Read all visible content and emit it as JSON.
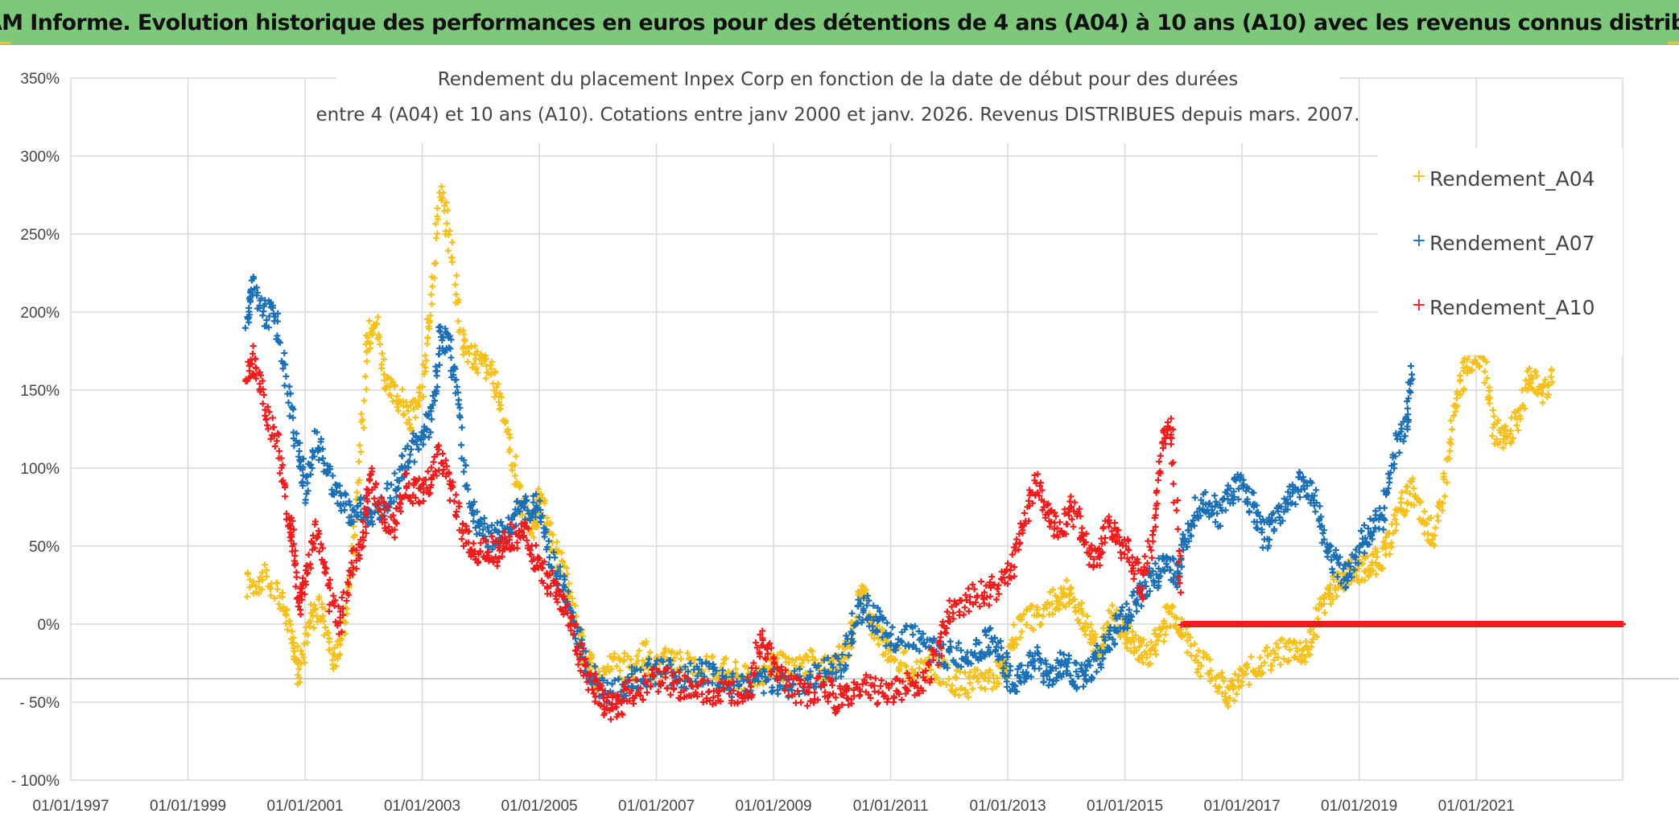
{
  "banner": {
    "title": "ADAM Informe. Evolution historique des performances en euros pour des détentions de 4 ans (A04) à 10 ans (A10) avec les revenus connus distribués"
  },
  "chart_data": {
    "type": "scatter",
    "title_line1": "Rendement du placement Inpex Corp en fonction de la date de début pour des durées",
    "title_line2": "entre 4 (A04) et 10 ans (A10). Cotations entre janv 2000 et janv. 2026. Revenus DISTRIBUES depuis mars. 2007.",
    "xlim": [
      1997.0,
      2023.5
    ],
    "ylim": [
      -100,
      350
    ],
    "x_ticks": [
      1997,
      1999,
      2001,
      2003,
      2005,
      2007,
      2009,
      2011,
      2013,
      2015,
      2017,
      2019,
      2021
    ],
    "x_tick_labels": [
      "01/01/1997",
      "01/01/1999",
      "01/01/2001",
      "01/01/2003",
      "01/01/2005",
      "01/01/2007",
      "01/01/2009",
      "01/01/2011",
      "01/01/2013",
      "01/01/2015",
      "01/01/2017",
      "01/01/2019",
      "01/01/2021"
    ],
    "y_ticks": [
      350,
      300,
      250,
      200,
      150,
      100,
      50,
      0,
      -50,
      -100
    ],
    "y_tick_labels": [
      "350%",
      "300%",
      "250%",
      "200%",
      "150%",
      "100%",
      "50%",
      "0%",
      "- 50%",
      "- 100%"
    ],
    "grid": true,
    "legend_position": "top-right",
    "marker": "+",
    "series": [
      {
        "name": "Rendement_A04",
        "color": "#f5c01a",
        "points": [
          [
            2000.0,
            25
          ],
          [
            2000.3,
            30
          ],
          [
            2000.6,
            15
          ],
          [
            2000.8,
            -10
          ],
          [
            2000.9,
            -30
          ],
          [
            2001.1,
            5
          ],
          [
            2001.3,
            10
          ],
          [
            2001.5,
            -25
          ],
          [
            2001.7,
            5
          ],
          [
            2001.9,
            80
          ],
          [
            2002.05,
            175
          ],
          [
            2002.2,
            200
          ],
          [
            2002.4,
            150
          ],
          [
            2002.6,
            145
          ],
          [
            2002.8,
            130
          ],
          [
            2003.0,
            150
          ],
          [
            2003.15,
            200
          ],
          [
            2003.3,
            280
          ],
          [
            2003.5,
            240
          ],
          [
            2003.7,
            180
          ],
          [
            2003.9,
            170
          ],
          [
            2004.1,
            165
          ],
          [
            2004.3,
            150
          ],
          [
            2004.5,
            115
          ],
          [
            2004.7,
            75
          ],
          [
            2004.9,
            60
          ],
          [
            2005.0,
            80
          ],
          [
            2005.2,
            55
          ],
          [
            2005.4,
            35
          ],
          [
            2005.6,
            5
          ],
          [
            2005.8,
            -20
          ],
          [
            2006.0,
            -35
          ],
          [
            2006.3,
            -25
          ],
          [
            2006.6,
            -30
          ],
          [
            2006.8,
            -20
          ],
          [
            2007.0,
            -30
          ],
          [
            2007.3,
            -20
          ],
          [
            2007.6,
            -30
          ],
          [
            2007.9,
            -25
          ],
          [
            2008.2,
            -30
          ],
          [
            2008.5,
            -35
          ],
          [
            2008.8,
            -30
          ],
          [
            2009.0,
            -25
          ],
          [
            2009.3,
            -30
          ],
          [
            2009.6,
            -25
          ],
          [
            2009.9,
            -30
          ],
          [
            2010.1,
            -25
          ],
          [
            2010.3,
            -10
          ],
          [
            2010.5,
            25
          ],
          [
            2010.7,
            0
          ],
          [
            2010.9,
            -15
          ],
          [
            2011.1,
            -20
          ],
          [
            2011.4,
            -30
          ],
          [
            2011.7,
            -25
          ],
          [
            2012.0,
            -35
          ],
          [
            2012.3,
            -40
          ],
          [
            2012.6,
            -35
          ],
          [
            2012.9,
            -30
          ],
          [
            2013.0,
            -25
          ],
          [
            2013.2,
            0
          ],
          [
            2013.5,
            5
          ],
          [
            2013.8,
            15
          ],
          [
            2014.0,
            20
          ],
          [
            2014.2,
            10
          ],
          [
            2014.4,
            -5
          ],
          [
            2014.6,
            -15
          ],
          [
            2014.8,
            5
          ],
          [
            2015.0,
            -5
          ],
          [
            2015.2,
            -15
          ],
          [
            2015.4,
            -20
          ],
          [
            2015.6,
            -5
          ],
          [
            2015.8,
            10
          ],
          [
            2016.0,
            -5
          ],
          [
            2016.3,
            -25
          ],
          [
            2016.6,
            -35
          ],
          [
            2016.8,
            -45
          ],
          [
            2017.0,
            -35
          ],
          [
            2017.3,
            -25
          ],
          [
            2017.6,
            -20
          ],
          [
            2017.9,
            -15
          ],
          [
            2018.1,
            -20
          ],
          [
            2018.3,
            5
          ],
          [
            2018.5,
            20
          ],
          [
            2018.7,
            30
          ],
          [
            2018.9,
            35
          ],
          [
            2019.1,
            35
          ],
          [
            2019.3,
            40
          ],
          [
            2019.5,
            50
          ],
          [
            2019.7,
            75
          ],
          [
            2019.9,
            85
          ],
          [
            2020.1,
            65
          ],
          [
            2020.3,
            55
          ],
          [
            2020.5,
            100
          ],
          [
            2020.7,
            150
          ],
          [
            2020.9,
            170
          ],
          [
            2021.1,
            175
          ],
          [
            2021.3,
            125
          ],
          [
            2021.5,
            120
          ],
          [
            2021.7,
            130
          ],
          [
            2021.9,
            160
          ],
          [
            2022.1,
            150
          ],
          [
            2022.3,
            155
          ]
        ]
      },
      {
        "name": "Rendement_A07",
        "color": "#1b6fb5",
        "points": [
          [
            2000.0,
            190
          ],
          [
            2000.1,
            220
          ],
          [
            2000.3,
            200
          ],
          [
            2000.5,
            195
          ],
          [
            2000.7,
            150
          ],
          [
            2000.9,
            110
          ],
          [
            2001.0,
            85
          ],
          [
            2001.2,
            120
          ],
          [
            2001.4,
            95
          ],
          [
            2001.6,
            80
          ],
          [
            2001.8,
            70
          ],
          [
            2002.0,
            75
          ],
          [
            2002.2,
            70
          ],
          [
            2002.4,
            80
          ],
          [
            2002.6,
            95
          ],
          [
            2002.8,
            110
          ],
          [
            2003.0,
            120
          ],
          [
            2003.2,
            135
          ],
          [
            2003.3,
            185
          ],
          [
            2003.45,
            180
          ],
          [
            2003.6,
            150
          ],
          [
            2003.8,
            80
          ],
          [
            2004.0,
            60
          ],
          [
            2004.2,
            55
          ],
          [
            2004.4,
            60
          ],
          [
            2004.6,
            70
          ],
          [
            2004.8,
            75
          ],
          [
            2005.0,
            75
          ],
          [
            2005.2,
            40
          ],
          [
            2005.4,
            25
          ],
          [
            2005.6,
            0
          ],
          [
            2005.8,
            -25
          ],
          [
            2006.0,
            -40
          ],
          [
            2006.3,
            -45
          ],
          [
            2006.6,
            -35
          ],
          [
            2006.9,
            -30
          ],
          [
            2007.2,
            -30
          ],
          [
            2007.5,
            -35
          ],
          [
            2007.8,
            -30
          ],
          [
            2008.1,
            -35
          ],
          [
            2008.4,
            -40
          ],
          [
            2008.7,
            -40
          ],
          [
            2009.0,
            -35
          ],
          [
            2009.3,
            -40
          ],
          [
            2009.6,
            -35
          ],
          [
            2009.9,
            -30
          ],
          [
            2010.2,
            -25
          ],
          [
            2010.4,
            5
          ],
          [
            2010.6,
            10
          ],
          [
            2010.8,
            0
          ],
          [
            2011.0,
            -10
          ],
          [
            2011.3,
            -5
          ],
          [
            2011.6,
            -15
          ],
          [
            2011.9,
            -20
          ],
          [
            2012.2,
            -20
          ],
          [
            2012.5,
            -15
          ],
          [
            2012.7,
            -10
          ],
          [
            2012.9,
            -20
          ],
          [
            2013.1,
            -40
          ],
          [
            2013.3,
            -30
          ],
          [
            2013.5,
            -20
          ],
          [
            2013.7,
            -35
          ],
          [
            2013.9,
            -25
          ],
          [
            2014.1,
            -30
          ],
          [
            2014.3,
            -35
          ],
          [
            2014.5,
            -25
          ],
          [
            2014.7,
            -15
          ],
          [
            2014.9,
            0
          ],
          [
            2015.1,
            10
          ],
          [
            2015.3,
            20
          ],
          [
            2015.5,
            30
          ],
          [
            2015.7,
            40
          ],
          [
            2015.9,
            30
          ],
          [
            2016.0,
            50
          ],
          [
            2016.2,
            75
          ],
          [
            2016.4,
            80
          ],
          [
            2016.6,
            70
          ],
          [
            2016.8,
            85
          ],
          [
            2017.0,
            90
          ],
          [
            2017.2,
            75
          ],
          [
            2017.4,
            55
          ],
          [
            2017.6,
            70
          ],
          [
            2017.8,
            80
          ],
          [
            2018.0,
            90
          ],
          [
            2018.2,
            85
          ],
          [
            2018.4,
            55
          ],
          [
            2018.6,
            40
          ],
          [
            2018.8,
            30
          ],
          [
            2019.0,
            50
          ],
          [
            2019.2,
            60
          ],
          [
            2019.4,
            70
          ],
          [
            2019.6,
            110
          ],
          [
            2019.8,
            130
          ],
          [
            2019.9,
            160
          ]
        ]
      },
      {
        "name": "Rendement_A10",
        "color": "#ee1c1c",
        "points": [
          [
            2000.0,
            160
          ],
          [
            2000.15,
            170
          ],
          [
            2000.3,
            140
          ],
          [
            2000.5,
            120
          ],
          [
            2000.7,
            70
          ],
          [
            2000.8,
            55
          ],
          [
            2000.9,
            10
          ],
          [
            2001.0,
            30
          ],
          [
            2001.2,
            60
          ],
          [
            2001.4,
            20
          ],
          [
            2001.6,
            0
          ],
          [
            2001.8,
            40
          ],
          [
            2002.0,
            55
          ],
          [
            2002.1,
            95
          ],
          [
            2002.3,
            75
          ],
          [
            2002.5,
            60
          ],
          [
            2002.7,
            90
          ],
          [
            2002.9,
            85
          ],
          [
            2003.1,
            90
          ],
          [
            2003.3,
            110
          ],
          [
            2003.5,
            85
          ],
          [
            2003.7,
            60
          ],
          [
            2003.9,
            45
          ],
          [
            2004.1,
            50
          ],
          [
            2004.3,
            45
          ],
          [
            2004.5,
            55
          ],
          [
            2004.7,
            60
          ],
          [
            2004.9,
            45
          ],
          [
            2005.1,
            30
          ],
          [
            2005.3,
            20
          ],
          [
            2005.5,
            5
          ],
          [
            2005.7,
            -20
          ],
          [
            2005.9,
            -40
          ],
          [
            2006.1,
            -50
          ],
          [
            2006.3,
            -55
          ],
          [
            2006.5,
            -45
          ],
          [
            2006.8,
            -40
          ],
          [
            2007.1,
            -35
          ],
          [
            2007.4,
            -40
          ],
          [
            2007.7,
            -45
          ],
          [
            2008.0,
            -45
          ],
          [
            2008.3,
            -45
          ],
          [
            2008.6,
            -40
          ],
          [
            2008.8,
            -5
          ],
          [
            2009.0,
            -30
          ],
          [
            2009.3,
            -40
          ],
          [
            2009.6,
            -45
          ],
          [
            2009.9,
            -40
          ],
          [
            2010.1,
            -50
          ],
          [
            2010.3,
            -45
          ],
          [
            2010.6,
            -40
          ],
          [
            2010.9,
            -45
          ],
          [
            2011.2,
            -40
          ],
          [
            2011.5,
            -40
          ],
          [
            2011.8,
            -20
          ],
          [
            2012.0,
            10
          ],
          [
            2012.3,
            15
          ],
          [
            2012.6,
            20
          ],
          [
            2012.9,
            25
          ],
          [
            2013.1,
            40
          ],
          [
            2013.3,
            70
          ],
          [
            2013.5,
            90
          ],
          [
            2013.7,
            70
          ],
          [
            2013.9,
            60
          ],
          [
            2014.1,
            75
          ],
          [
            2014.3,
            55
          ],
          [
            2014.5,
            40
          ],
          [
            2014.7,
            60
          ],
          [
            2014.9,
            55
          ],
          [
            2015.1,
            40
          ],
          [
            2015.3,
            25
          ],
          [
            2015.5,
            60
          ],
          [
            2015.65,
            120
          ],
          [
            2015.8,
            125
          ],
          [
            2016.0,
            0
          ],
          [
            2016.6,
            0
          ],
          [
            2017.2,
            0
          ],
          [
            2017.8,
            0
          ],
          [
            2018.4,
            0
          ],
          [
            2019.0,
            0
          ],
          [
            2019.6,
            0
          ],
          [
            2020.2,
            0
          ],
          [
            2020.8,
            0
          ],
          [
            2021.4,
            0
          ],
          [
            2022.0,
            0
          ],
          [
            2022.6,
            0
          ],
          [
            2023.2,
            0
          ],
          [
            2023.5,
            0
          ]
        ]
      }
    ]
  }
}
